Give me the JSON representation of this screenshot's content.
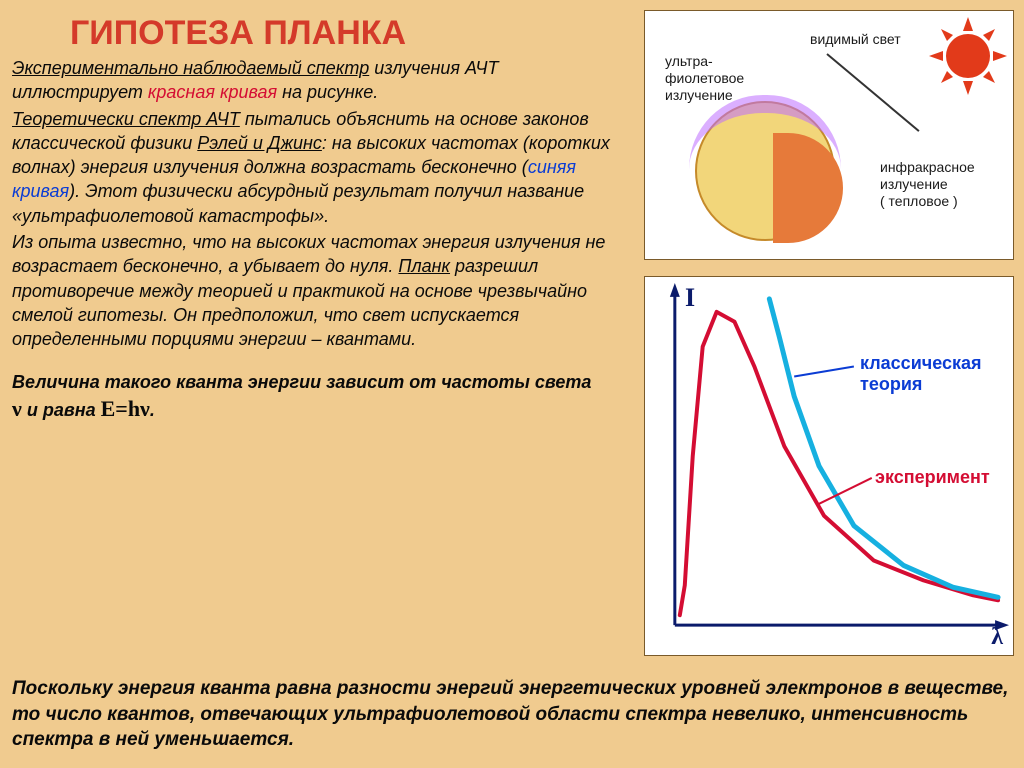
{
  "title": "ГИПОТЕЗА ПЛАНКА",
  "para1_a": "Экспериментально наблюдаемый спектр",
  "para1_b": " излучения АЧТ иллюстрирует ",
  "para1_red": "красная кривая",
  "para1_c": " на рисунке.",
  "para2_a": "Теоретически спектр АЧТ",
  "para2_b": " пытались объяснить на основе законов классической физики ",
  "para2_u2": "Рэлей и Джинс",
  "para2_c": ": на высоких частотах (коротких волнах) энергия излучения должна возрастать бесконечно (",
  "para2_blue": "синяя кривая",
  "para2_d": "). Этот физически абсурдный результат получил название «ультрафиолетовой катастрофы».",
  "para3_a": "Из опыта известно, что на высоких частотах энергия излучения не возрастает бесконечно, а убывает до нуля. ",
  "para3_u": "Планк",
  "para3_b": " разрешил противоречие между теорией и практикой на основе чрезвычайно смелой гипотезы. Он предположил, что свет испускается определенными порциями энергии – квантами.",
  "para4_a": "Величина такого кванта энергии зависит от частоты света ",
  "para4_nu": "ν",
  "para4_b": " и равна ",
  "para4_formula": "Е=hν",
  "para4_c": ".",
  "bottom": "Поскольку энергия кванта равна разности энергий энергетических уровней электронов в веществе, то число квантов, отвечающих ультрафиолетовой области спектра невелико, интенсивность спектра в ней уменьшается.",
  "sun_diagram": {
    "labels": {
      "uv": "ультра-\nфиолетовое\nизлучение",
      "visible": "видимый свет",
      "ir": "инфракрасное\nизлучение\n( тепловое )"
    },
    "colors": {
      "sun": "#e23a1a",
      "earth_fill": "#f2d67a",
      "earth_border": "#c58a2a",
      "uv_ring": "rgba(190,110,255,0.55)",
      "ir_fill": "#e67a3a",
      "bg": "#ffffff"
    }
  },
  "chart": {
    "type": "line",
    "background_color": "#ffffff",
    "axis_color": "#0b1b6b",
    "axis_width": 3,
    "y_axis_label": "I",
    "x_axis_label": "λ",
    "axis_label_color": "#0b1b6b",
    "axis_label_fontsize": 24,
    "series": [
      {
        "name": "эксперимент",
        "label_color": "#d40d33",
        "stroke": "#d40d33",
        "stroke_width": 4,
        "points": [
          [
            35,
            340
          ],
          [
            40,
            310
          ],
          [
            48,
            180
          ],
          [
            58,
            70
          ],
          [
            72,
            35
          ],
          [
            90,
            45
          ],
          [
            110,
            90
          ],
          [
            140,
            170
          ],
          [
            180,
            240
          ],
          [
            230,
            285
          ],
          [
            280,
            305
          ],
          [
            330,
            320
          ],
          [
            355,
            325
          ]
        ]
      },
      {
        "name": "классическая теория",
        "label_color": "#0b3cd4",
        "stroke": "#16b0e0",
        "stroke_width": 5,
        "points": [
          [
            125,
            22
          ],
          [
            135,
            60
          ],
          [
            150,
            120
          ],
          [
            175,
            190
          ],
          [
            210,
            250
          ],
          [
            260,
            290
          ],
          [
            310,
            312
          ],
          [
            355,
            322
          ]
        ]
      }
    ],
    "labels": {
      "classical": "классическая\nтеория",
      "experiment": "эксперимент"
    }
  }
}
